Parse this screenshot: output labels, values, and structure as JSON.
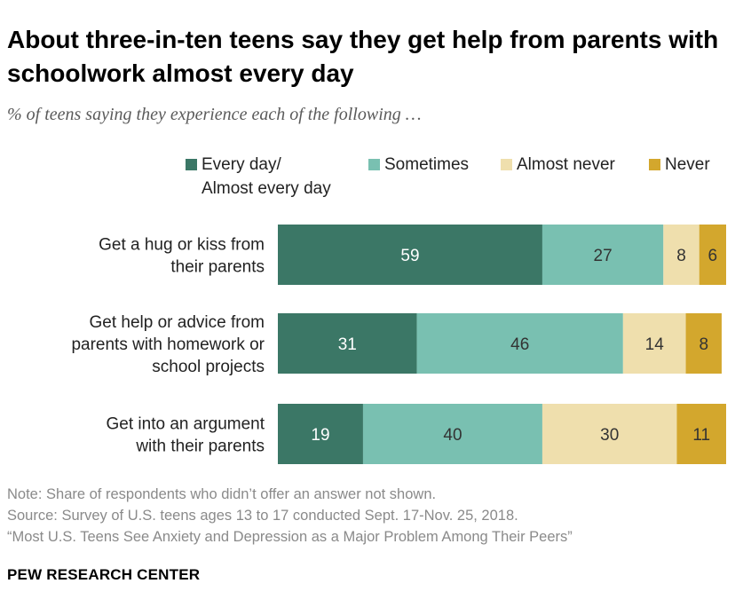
{
  "header": {
    "title": "About three-in-ten teens say they get help from parents with schoolwork almost every day",
    "subtitle": "% of teens saying they experience each of the following …"
  },
  "chart_data": {
    "type": "bar",
    "orientation": "horizontal",
    "stacked": true,
    "title": "About three-in-ten teens say they get help from parents with schoolwork almost every day",
    "subtitle": "% of teens saying they experience each of the following …",
    "xlim": [
      0,
      100
    ],
    "categories": [
      "Get a hug or kiss from their parents",
      "Get help or advice from parents with homework or school projects",
      "Get into an argument with their parents"
    ],
    "category_lines": [
      [
        "Get a hug or kiss from",
        "their parents"
      ],
      [
        "Get help or advice from",
        "parents with homework or",
        "school projects"
      ],
      [
        "Get into an argument",
        "with their parents"
      ]
    ],
    "series": [
      {
        "name": "Every day/ Almost every day",
        "legend_label": "Every day/\nAlmost every day",
        "color": "#3b7766",
        "label_color": "#ffffff",
        "values": [
          59,
          31,
          19
        ]
      },
      {
        "name": "Sometimes",
        "legend_label": "Sometimes",
        "color": "#79c0b1",
        "label_color": "#333333",
        "values": [
          27,
          46,
          40
        ]
      },
      {
        "name": "Almost never",
        "legend_label": "Almost never",
        "color": "#efdfad",
        "label_color": "#333333",
        "values": [
          8,
          14,
          30
        ]
      },
      {
        "name": "Never",
        "legend_label": "Never",
        "color": "#d3a72d",
        "label_color": "#333333",
        "values": [
          6,
          8,
          11
        ]
      }
    ],
    "legend_position": "top"
  },
  "notes": {
    "note": "Note: Share of respondents who didn’t offer an answer not shown.",
    "source": "Source: Survey of U.S. teens ages 13 to 17 conducted Sept. 17-Nov. 25, 2018.",
    "report": "“Most U.S. Teens See Anxiety and Depression as a Major Problem Among Their Peers”"
  },
  "brand": "PEW RESEARCH CENTER"
}
